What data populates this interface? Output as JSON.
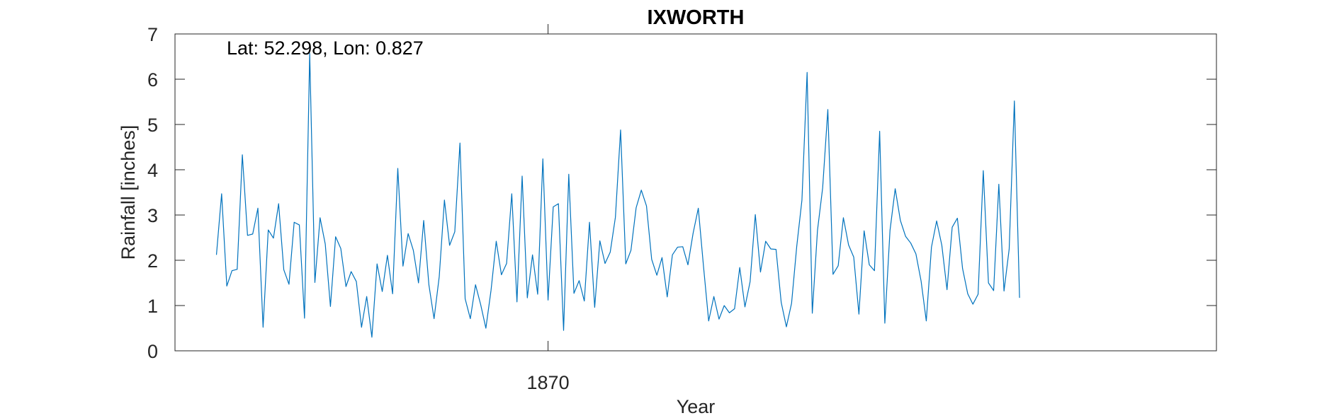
{
  "chart_data": {
    "type": "line",
    "title": "IXWORTH",
    "annotation": "Lat: 52.298, Lon: 0.827",
    "xlabel": "Year",
    "ylabel": "Rainfall [inches]",
    "ylim": [
      0,
      7
    ],
    "yticks": [
      0,
      1,
      2,
      3,
      4,
      5,
      6,
      7
    ],
    "xticks": [
      {
        "year": 1870,
        "label": "1870"
      }
    ],
    "xlim": [
      "1864-01",
      "1880-10"
    ],
    "grid": false,
    "line_color": "#0072BD",
    "series": [
      {
        "start": "1864-09",
        "step": "month",
        "values": [
          2.12,
          3.47,
          1.43,
          1.77,
          1.8,
          4.33,
          2.55,
          2.58,
          3.15,
          0.52,
          2.67,
          2.49,
          3.25,
          1.79,
          1.47,
          2.84,
          2.78,
          0.72,
          6.57,
          1.51,
          2.94,
          2.36,
          0.98,
          2.52,
          2.26,
          1.42,
          1.75,
          1.53,
          0.52,
          1.2,
          0.3,
          1.92,
          1.31,
          2.11,
          1.26,
          4.03,
          1.87,
          2.59,
          2.22,
          1.5,
          2.88,
          1.46,
          0.71,
          1.64,
          3.33,
          2.33,
          2.63,
          4.59,
          1.15,
          0.71,
          1.46,
          1.02,
          0.5,
          1.34,
          2.42,
          1.68,
          1.93,
          3.47,
          1.08,
          3.86,
          1.17,
          2.12,
          1.25,
          4.24,
          1.12,
          3.18,
          3.25,
          0.45,
          3.9,
          1.27,
          1.55,
          1.1,
          2.84,
          0.96,
          2.43,
          1.93,
          2.18,
          2.95,
          4.88,
          1.92,
          2.22,
          3.16,
          3.55,
          3.2,
          2.02,
          1.67,
          2.06,
          1.19,
          2.12,
          2.29,
          2.3,
          1.9,
          2.6,
          3.15,
          1.87,
          0.66,
          1.2,
          0.7,
          1.0,
          0.84,
          0.93,
          1.84,
          0.97,
          1.53,
          3.01,
          1.74,
          2.42,
          2.25,
          2.24,
          1.07,
          0.53,
          1.05,
          2.31,
          3.33,
          6.15,
          0.83,
          2.66,
          3.6,
          5.33,
          1.69,
          1.88,
          2.94,
          2.34,
          2.07,
          0.81,
          2.65,
          1.9,
          1.77,
          4.85,
          0.61,
          2.66,
          3.58,
          2.88,
          2.53,
          2.38,
          2.14,
          1.54,
          0.66,
          2.29,
          2.87,
          2.33,
          1.35,
          2.73,
          2.93,
          1.82,
          1.26,
          1.03,
          1.25,
          3.98,
          1.5,
          1.33,
          3.68,
          1.32,
          2.25,
          5.52,
          1.17
        ]
      }
    ]
  }
}
